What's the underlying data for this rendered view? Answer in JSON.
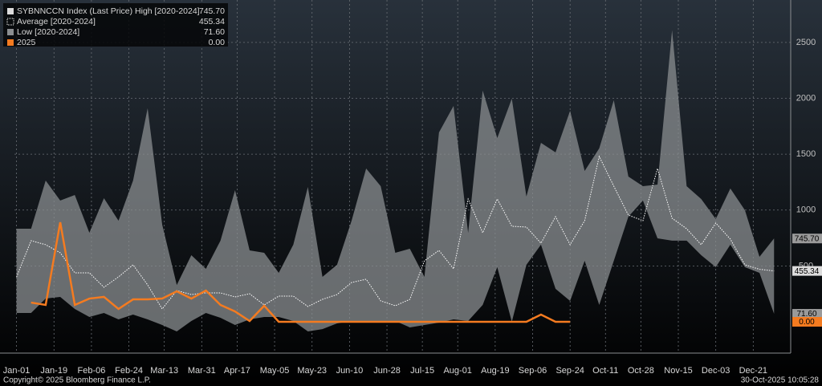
{
  "chart_data": {
    "type": "band-line",
    "xlim": [
      0,
      373
    ],
    "ylim": [
      -280,
      2880
    ],
    "xticks": [
      {
        "value": 1,
        "label": "Jan-01"
      },
      {
        "value": 19,
        "label": "Jan-19"
      },
      {
        "value": 37,
        "label": "Feb-06"
      },
      {
        "value": 55,
        "label": "Feb-24"
      },
      {
        "value": 72,
        "label": "Mar-13"
      },
      {
        "value": 90,
        "label": "Mar-31"
      },
      {
        "value": 107,
        "label": "Apr-17"
      },
      {
        "value": 125,
        "label": "May-05"
      },
      {
        "value": 143,
        "label": "May-23"
      },
      {
        "value": 161,
        "label": "Jun-10"
      },
      {
        "value": 179,
        "label": "Jun-28"
      },
      {
        "value": 196,
        "label": "Jul-15"
      },
      {
        "value": 213,
        "label": "Aug-01"
      },
      {
        "value": 231,
        "label": "Aug-19"
      },
      {
        "value": 249,
        "label": "Sep-06"
      },
      {
        "value": 267,
        "label": "Sep-24"
      },
      {
        "value": 284,
        "label": "Oct-11"
      },
      {
        "value": 301,
        "label": "Oct-28"
      },
      {
        "value": 319,
        "label": "Nov-15"
      },
      {
        "value": 337,
        "label": "Dec-03"
      },
      {
        "value": 355,
        "label": "Dec-21"
      }
    ],
    "yticks": [
      500,
      1000,
      1500,
      2000,
      2500
    ],
    "grid": true,
    "legend": "top-left",
    "x": [
      1,
      8,
      15,
      22,
      29,
      36,
      43,
      50,
      57,
      64,
      71,
      78,
      85,
      92,
      99,
      106,
      113,
      120,
      127,
      134,
      141,
      148,
      155,
      162,
      169,
      176,
      183,
      190,
      197,
      204,
      211,
      218,
      225,
      232,
      239,
      246,
      253,
      260,
      267,
      274,
      281,
      288,
      295,
      302,
      309,
      316,
      323,
      330,
      337,
      344,
      351,
      358,
      365
    ],
    "series": [
      {
        "name": "SYBNNCCN Index (Last Price) High [2020-2024]",
        "role": "high",
        "color": "#8a8d90",
        "values": [
          833,
          833,
          1264,
          1085,
          1135,
          797,
          1106,
          905,
          1264,
          1911,
          869,
          330,
          596,
          474,
          726,
          1178,
          639,
          618,
          438,
          690,
          1207,
          402,
          510,
          905,
          1372,
          1214,
          618,
          654,
          402,
          1695,
          1932,
          797,
          2069,
          1645,
          1997,
          1121,
          1602,
          1516,
          1889,
          1350,
          1552,
          1983,
          1300,
          1214,
          1228,
          2610,
          1214,
          1099,
          920,
          1193,
          999,
          582,
          745.7
        ],
        "value_labels": [
          null,
          null,
          null,
          null,
          null,
          null,
          null,
          null,
          null,
          null,
          null,
          null,
          null,
          null,
          null,
          null,
          null,
          null,
          null,
          null,
          null,
          null,
          null,
          null,
          null,
          null,
          null,
          null,
          null,
          null,
          null,
          null,
          null,
          null,
          null,
          null,
          null,
          null,
          null,
          null,
          null,
          null,
          null,
          null,
          null,
          null,
          null,
          null,
          null,
          null,
          null,
          null,
          "745.70"
        ]
      },
      {
        "name": "Average  [2020-2024]",
        "role": "average",
        "color": "#ffffff",
        "values": [
          402,
          726,
          690,
          618,
          438,
          438,
          309,
          402,
          510,
          330,
          115,
          280,
          244,
          259,
          259,
          223,
          251,
          151,
          230,
          230,
          137,
          201,
          244,
          352,
          381,
          187,
          144,
          201,
          546,
          639,
          474,
          1099,
          797,
          1099,
          855,
          848,
          704,
          941,
          690,
          905,
          1480,
          1214,
          955,
          905,
          1372,
          927,
          833,
          690,
          884,
          740,
          510,
          470,
          455.34
        ],
        "value_labels": [
          null,
          null,
          null,
          null,
          null,
          null,
          null,
          null,
          null,
          null,
          null,
          null,
          null,
          null,
          null,
          null,
          null,
          null,
          null,
          null,
          null,
          null,
          null,
          null,
          null,
          null,
          null,
          null,
          null,
          null,
          null,
          null,
          null,
          null,
          null,
          null,
          null,
          null,
          null,
          null,
          null,
          null,
          null,
          null,
          null,
          null,
          null,
          null,
          null,
          null,
          null,
          null,
          "455.34"
        ]
      },
      {
        "name": "Low  [2020-2024]",
        "role": "low",
        "color": "#8a8d90",
        "values": [
          79,
          79,
          208,
          223,
          115,
          43,
          79,
          22,
          65,
          22,
          -29,
          -86,
          7,
          79,
          36,
          -29,
          22,
          43,
          43,
          7,
          -86,
          -65,
          -14,
          7,
          7,
          -7,
          7,
          -50,
          -29,
          -7,
          22,
          7,
          151,
          489,
          0,
          510,
          690,
          295,
          187,
          546,
          151,
          546,
          941,
          1085,
          747,
          726,
          726,
          596,
          489,
          690,
          489,
          438,
          71.6
        ],
        "value_labels": [
          null,
          null,
          null,
          null,
          null,
          null,
          null,
          null,
          null,
          null,
          null,
          null,
          null,
          null,
          null,
          null,
          null,
          null,
          null,
          null,
          null,
          null,
          null,
          null,
          null,
          null,
          null,
          null,
          null,
          null,
          null,
          null,
          null,
          null,
          null,
          null,
          null,
          null,
          null,
          null,
          null,
          null,
          null,
          null,
          null,
          null,
          null,
          null,
          null,
          null,
          null,
          null,
          "71.60"
        ]
      },
      {
        "name": "2025",
        "role": "current",
        "color": "#f47b20",
        "values": [
          null,
          172,
          151,
          891,
          151,
          208,
          223,
          115,
          201,
          201,
          208,
          273,
          208,
          280,
          151,
          93,
          7,
          144,
          0,
          0,
          0,
          0,
          0,
          0,
          0,
          0,
          0,
          0,
          0,
          0,
          0,
          0,
          0,
          0,
          0,
          0,
          65,
          0,
          0,
          null,
          null,
          null,
          null,
          null,
          null,
          null,
          null,
          null,
          null,
          null,
          null,
          null,
          null
        ],
        "value_labels": [
          null,
          null,
          null,
          null,
          null,
          null,
          null,
          null,
          null,
          null,
          null,
          null,
          null,
          null,
          null,
          null,
          null,
          null,
          null,
          null,
          null,
          null,
          null,
          null,
          null,
          null,
          null,
          null,
          null,
          null,
          null,
          null,
          null,
          null,
          null,
          null,
          null,
          null,
          "0.00",
          null,
          null,
          null,
          null,
          null,
          null,
          null,
          null,
          null,
          null,
          null,
          null,
          null,
          null
        ]
      }
    ]
  },
  "footer": {
    "copyright": "Copyright© 2025 Bloomberg Finance L.P.",
    "timestamp": "30-Oct-2025 10:05:28"
  }
}
